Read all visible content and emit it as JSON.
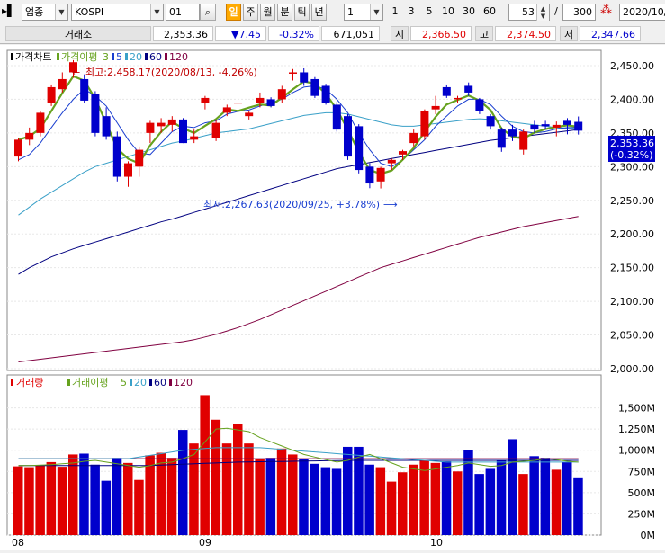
{
  "toolbar": {
    "market_type": "업종",
    "index_name": "KOSPI",
    "interval_value": "01",
    "periods": [
      "일",
      "주",
      "월",
      "분",
      "틱",
      "년"
    ],
    "active_period": "일",
    "count_select": "1",
    "quick_counts": [
      "1",
      "3",
      "5",
      "10",
      "30",
      "60"
    ],
    "zoom_value": "53",
    "separator": "/",
    "total_count": "300",
    "date_field": "2020/10/"
  },
  "quote": {
    "exchange": "거래소",
    "price": "2,353.36",
    "change": "▼7.45",
    "change_pct": "-0.32%",
    "volume": "671,051",
    "open_label": "시",
    "open": "2,366.50",
    "high_label": "고",
    "high": "2,374.50",
    "low_label": "저",
    "low": "2,347.66"
  },
  "price_panel": {
    "title": "가격차트",
    "ma_label": "가격이평",
    "ma_periods": [
      "3",
      "5",
      "20",
      "60",
      "120"
    ],
    "high_annotation": "최고:2,458.17(2020/08/13, -4.26%)",
    "low_annotation": "최저:2,267.63(2020/09/25, +3.78%)",
    "axis_ticks": [
      "2,450.00",
      "2,400.00",
      "2,350.00",
      "2,300.00",
      "2,250.00",
      "2,200.00",
      "2,150.00",
      "2,100.00",
      "2,050.00",
      "2,000.00"
    ],
    "current_price": "2,353.36",
    "current_change": "(-0.32%)"
  },
  "volume_panel": {
    "title": "거래량",
    "ma_label": "거래이평",
    "ma_periods": [
      "5",
      "20",
      "60",
      "120"
    ],
    "axis_ticks": [
      "1,500M",
      "1,250M",
      "1,000M",
      "750M",
      "500M",
      "250M",
      "0M"
    ]
  },
  "x_labels": [
    "08",
    "09",
    "10"
  ],
  "colors": {
    "up": "#e00000",
    "down": "#0000cc",
    "ma3": "#66a21e",
    "ma5": "#1a3fd0",
    "ma20": "#3aa0c8",
    "ma60": "#000080",
    "ma120": "#800040",
    "active_period": "#ffaa00"
  },
  "chart_data": {
    "type": "candlestick",
    "x_axis_months": [
      "08",
      "09",
      "10"
    ],
    "price_range": [
      2000,
      2470
    ],
    "ohlc": [
      {
        "o": 2315,
        "h": 2343,
        "l": 2308,
        "c": 2340
      },
      {
        "o": 2340,
        "h": 2358,
        "l": 2332,
        "c": 2350
      },
      {
        "o": 2350,
        "h": 2383,
        "l": 2345,
        "c": 2380
      },
      {
        "o": 2395,
        "h": 2422,
        "l": 2390,
        "c": 2418
      },
      {
        "o": 2415,
        "h": 2440,
        "l": 2410,
        "c": 2430
      },
      {
        "o": 2440,
        "h": 2458.17,
        "l": 2432,
        "c": 2455
      },
      {
        "o": 2430,
        "h": 2437,
        "l": 2395,
        "c": 2398
      },
      {
        "o": 2408,
        "h": 2412,
        "l": 2345,
        "c": 2350
      },
      {
        "o": 2375,
        "h": 2388,
        "l": 2340,
        "c": 2345
      },
      {
        "o": 2345,
        "h": 2352,
        "l": 2278,
        "c": 2285
      },
      {
        "o": 2285,
        "h": 2308,
        "l": 2270,
        "c": 2305
      },
      {
        "o": 2300,
        "h": 2330,
        "l": 2285,
        "c": 2325
      },
      {
        "o": 2350,
        "h": 2368,
        "l": 2335,
        "c": 2365
      },
      {
        "o": 2360,
        "h": 2372,
        "l": 2350,
        "c": 2365
      },
      {
        "o": 2362,
        "h": 2375,
        "l": 2352,
        "c": 2370
      },
      {
        "o": 2370,
        "h": 2372,
        "l": 2335,
        "c": 2335
      },
      {
        "o": 2340,
        "h": 2355,
        "l": 2335,
        "c": 2345
      },
      {
        "o": 2395,
        "h": 2405,
        "l": 2385,
        "c": 2402
      },
      {
        "o": 2342,
        "h": 2370,
        "l": 2338,
        "c": 2365
      },
      {
        "o": 2380,
        "h": 2392,
        "l": 2375,
        "c": 2388
      },
      {
        "o": 2395,
        "h": 2402,
        "l": 2387,
        "c": 2395
      },
      {
        "o": 2375,
        "h": 2382,
        "l": 2370,
        "c": 2380
      },
      {
        "o": 2395,
        "h": 2410,
        "l": 2388,
        "c": 2402
      },
      {
        "o": 2400,
        "h": 2403,
        "l": 2388,
        "c": 2390
      },
      {
        "o": 2400,
        "h": 2420,
        "l": 2395,
        "c": 2415
      },
      {
        "o": 2438,
        "h": 2445,
        "l": 2428,
        "c": 2440
      },
      {
        "o": 2440,
        "h": 2446,
        "l": 2420,
        "c": 2425
      },
      {
        "o": 2430,
        "h": 2433,
        "l": 2402,
        "c": 2405
      },
      {
        "o": 2420,
        "h": 2423,
        "l": 2392,
        "c": 2395
      },
      {
        "o": 2392,
        "h": 2396,
        "l": 2352,
        "c": 2355
      },
      {
        "o": 2375,
        "h": 2378,
        "l": 2310,
        "c": 2315
      },
      {
        "o": 2360,
        "h": 2363,
        "l": 2290,
        "c": 2295
      },
      {
        "o": 2300,
        "h": 2305,
        "l": 2268,
        "c": 2275
      },
      {
        "o": 2278,
        "h": 2300,
        "l": 2267.63,
        "c": 2298
      },
      {
        "o": 2305,
        "h": 2312,
        "l": 2295,
        "c": 2310
      },
      {
        "o": 2318,
        "h": 2325,
        "l": 2310,
        "c": 2323
      },
      {
        "o": 2335,
        "h": 2355,
        "l": 2330,
        "c": 2350
      },
      {
        "o": 2345,
        "h": 2385,
        "l": 2340,
        "c": 2382
      },
      {
        "o": 2385,
        "h": 2405,
        "l": 2378,
        "c": 2390
      },
      {
        "o": 2418,
        "h": 2422,
        "l": 2402,
        "c": 2405
      },
      {
        "o": 2400,
        "h": 2405,
        "l": 2395,
        "c": 2402
      },
      {
        "o": 2420,
        "h": 2425,
        "l": 2405,
        "c": 2410
      },
      {
        "o": 2400,
        "h": 2402,
        "l": 2378,
        "c": 2382
      },
      {
        "o": 2375,
        "h": 2378,
        "l": 2355,
        "c": 2360
      },
      {
        "o": 2355,
        "h": 2358,
        "l": 2322,
        "c": 2328
      },
      {
        "o": 2355,
        "h": 2362,
        "l": 2338,
        "c": 2345
      },
      {
        "o": 2325,
        "h": 2355,
        "l": 2318,
        "c": 2352
      },
      {
        "o": 2362,
        "h": 2368,
        "l": 2350,
        "c": 2355
      },
      {
        "o": 2363,
        "h": 2368,
        "l": 2355,
        "c": 2360
      },
      {
        "o": 2358,
        "h": 2367,
        "l": 2345,
        "c": 2362
      },
      {
        "o": 2368,
        "h": 2372,
        "l": 2348,
        "c": 2362
      },
      {
        "o": 2366.5,
        "h": 2374.5,
        "l": 2347.66,
        "c": 2353.36
      }
    ],
    "volume_M": [
      810,
      800,
      820,
      860,
      805,
      950,
      960,
      830,
      640,
      910,
      850,
      650,
      940,
      970,
      910,
      1240,
      1080,
      1650,
      1360,
      1080,
      1310,
      1080,
      900,
      910,
      1020,
      950,
      900,
      840,
      800,
      780,
      1040,
      1040,
      830,
      800,
      630,
      740,
      830,
      880,
      850,
      870,
      750,
      1000,
      720,
      780,
      880,
      1130,
      720,
      930,
      910,
      770,
      860,
      670
    ],
    "ma5": [
      2310,
      2318,
      2335,
      2358,
      2380,
      2400,
      2415,
      2405,
      2390,
      2365,
      2340,
      2320,
      2318,
      2335,
      2352,
      2360,
      2358,
      2365,
      2368,
      2378,
      2382,
      2384,
      2390,
      2395,
      2400,
      2410,
      2418,
      2420,
      2415,
      2400,
      2380,
      2350,
      2325,
      2305,
      2300,
      2310,
      2325,
      2340,
      2360,
      2375,
      2390,
      2400,
      2400,
      2392,
      2375,
      2360,
      2352,
      2350,
      2352,
      2356,
      2358,
      2358
    ],
    "ma20": [
      2228,
      2240,
      2252,
      2262,
      2272,
      2282,
      2292,
      2300,
      2305,
      2310,
      2315,
      2320,
      2325,
      2330,
      2335,
      2338,
      2342,
      2346,
      2350,
      2352,
      2354,
      2356,
      2360,
      2364,
      2368,
      2372,
      2376,
      2378,
      2380,
      2380,
      2378,
      2374,
      2370,
      2366,
      2362,
      2360,
      2360,
      2362,
      2364,
      2366,
      2368,
      2370,
      2371,
      2370,
      2368,
      2366,
      2364,
      2362,
      2360,
      2358,
      2357,
      2356
    ],
    "ma60": [
      2140,
      2150,
      2158,
      2166,
      2172,
      2178,
      2183,
      2188,
      2193,
      2198,
      2203,
      2208,
      2213,
      2218,
      2222,
      2227,
      2232,
      2237,
      2242,
      2247,
      2252,
      2257,
      2262,
      2267,
      2272,
      2277,
      2282,
      2287,
      2292,
      2297,
      2300,
      2303,
      2306,
      2309,
      2312,
      2315,
      2318,
      2321,
      2324,
      2327,
      2330,
      2333,
      2336,
      2339,
      2341,
      2343,
      2345,
      2347,
      2349,
      2351,
      2353,
      2355
    ],
    "ma120": [
      2010,
      2012,
      2014,
      2016,
      2018,
      2020,
      2022,
      2024,
      2026,
      2028,
      2030,
      2032,
      2034,
      2036,
      2038,
      2040,
      2043,
      2047,
      2051,
      2056,
      2061,
      2067,
      2073,
      2080,
      2087,
      2094,
      2101,
      2108,
      2115,
      2122,
      2129,
      2136,
      2143,
      2150,
      2155,
      2160,
      2165,
      2170,
      2175,
      2180,
      2185,
      2190,
      2195,
      2199,
      2203,
      2207,
      2211,
      2214,
      2217,
      2220,
      2223,
      2226
    ],
    "vol_ma5": [
      820,
      820,
      825,
      830,
      840,
      850,
      870,
      880,
      860,
      840,
      820,
      800,
      820,
      850,
      860,
      900,
      950,
      1100,
      1250,
      1260,
      1240,
      1220,
      1150,
      1100,
      1050,
      1000,
      950,
      920,
      890,
      860,
      880,
      920,
      950,
      900,
      850,
      800,
      780,
      760,
      780,
      800,
      820,
      850,
      830,
      810,
      820,
      860,
      870,
      880,
      900,
      890,
      870,
      860
    ],
    "vol_ma20": [
      900,
      900,
      900,
      900,
      900,
      900,
      900,
      900,
      900,
      900,
      900,
      920,
      940,
      960,
      980,
      1000,
      1010,
      1020,
      1030,
      1030,
      1030,
      1030,
      1030,
      1020,
      1010,
      1000,
      990,
      980,
      970,
      960,
      950,
      940,
      930,
      920,
      910,
      900,
      890,
      880,
      870,
      860,
      860,
      860,
      860,
      860,
      860,
      860,
      860,
      860,
      860,
      860,
      860,
      860
    ],
    "vol_ma60": [
      820,
      820,
      820,
      820,
      820,
      820,
      820,
      820,
      820,
      820,
      820,
      820,
      820,
      825,
      830,
      835,
      840,
      845,
      850,
      855,
      860,
      862,
      864,
      866,
      868,
      870,
      872,
      874,
      876,
      878,
      880,
      880,
      880,
      880,
      880,
      880,
      880,
      880,
      880,
      880,
      880,
      880,
      880,
      880,
      880,
      880,
      880,
      880,
      880,
      880,
      880,
      880
    ],
    "vol_ma120": [
      900,
      900,
      900,
      900,
      900,
      900,
      900,
      900,
      900,
      900,
      900,
      900,
      900,
      900,
      900,
      900,
      900,
      900,
      900,
      900,
      900,
      900,
      900,
      900,
      900,
      900,
      900,
      900,
      900,
      900,
      900,
      900,
      900,
      900,
      900,
      900,
      900,
      900,
      900,
      900,
      900,
      900,
      900,
      900,
      900,
      900,
      900,
      900,
      900,
      900,
      900,
      900
    ],
    "volume_range": [
      0,
      1750
    ]
  }
}
